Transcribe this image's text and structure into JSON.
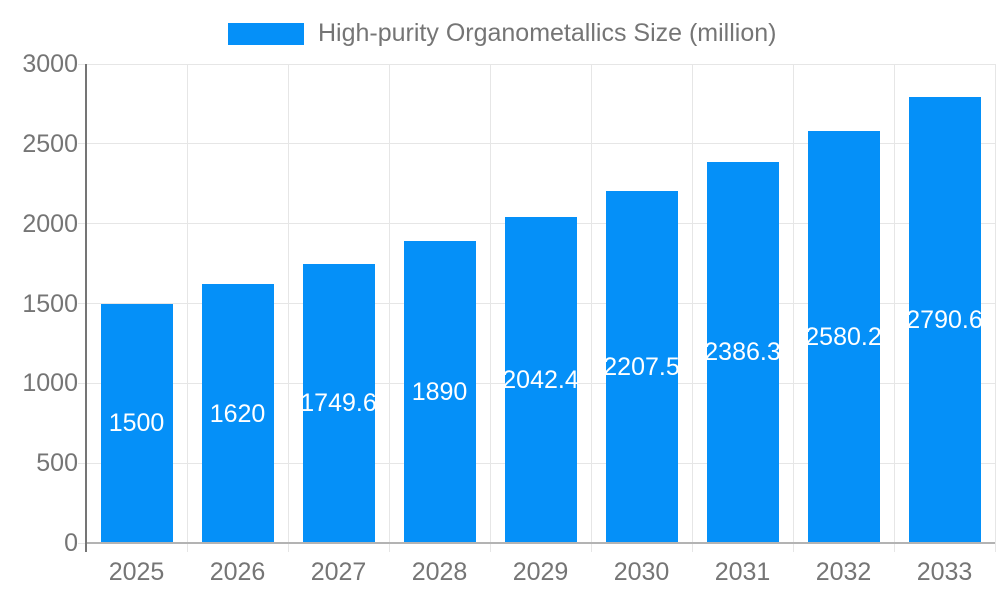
{
  "legend": {
    "label": "High-purity Organometallics Size (million)"
  },
  "chart_data": {
    "type": "bar",
    "title": "High-purity Organometallics Size (million)",
    "categories": [
      "2025",
      "2026",
      "2027",
      "2028",
      "2029",
      "2030",
      "2031",
      "2032",
      "2033"
    ],
    "series": [
      {
        "name": "High-purity Organometallics Size (million)",
        "values": [
          1500,
          1620,
          1749.6,
          1890,
          2042.4,
          2207.5,
          2386.3,
          2580.2,
          2790.6
        ]
      }
    ],
    "value_labels": [
      "1500",
      "1620",
      "1749.6",
      "1890",
      "2042.4",
      "2207.5",
      "2386.3",
      "2580.2",
      "2790.6"
    ],
    "ytick_labels": [
      "0",
      "500",
      "1000",
      "1500",
      "2000",
      "2500",
      "3000"
    ],
    "ylim": [
      0,
      3000
    ],
    "ytick_step": 500,
    "xlabel": "",
    "ylabel": "",
    "grid": true,
    "legend_position": "top-center",
    "colors": {
      "bar": "#0590f8",
      "grid": "#e6e6e6",
      "baseline": "#b3b3b3",
      "axis_line": "#757575",
      "text": "#757575",
      "value_label": "#ffffff",
      "background": "#ffffff"
    }
  }
}
